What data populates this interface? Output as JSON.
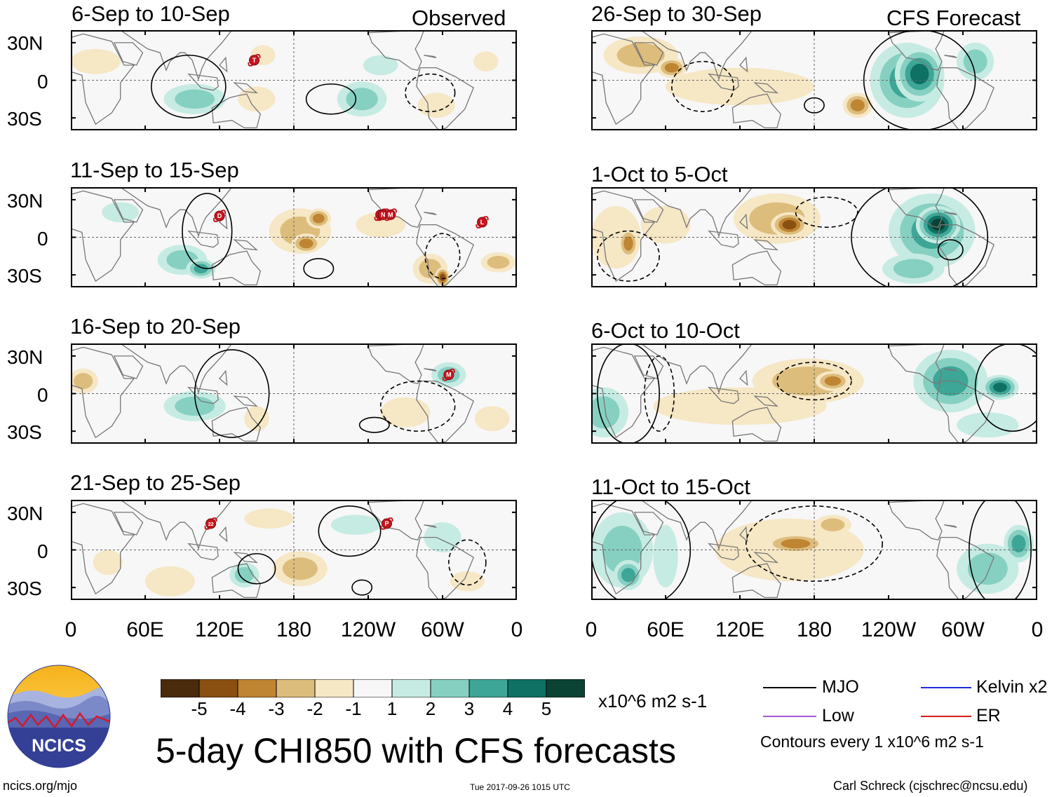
{
  "observed_label": "Observed",
  "forecast_label": "CFS Forecast",
  "lat_labels": [
    "30N",
    "0",
    "30S"
  ],
  "lon_labels": [
    "0",
    "60E",
    "120E",
    "180",
    "120W",
    "60W",
    "0"
  ],
  "panels": [
    {
      "title": "6-Sep to 10-Sep",
      "storms": [
        {
          "label": "T",
          "lon": 148,
          "lat": 16
        }
      ]
    },
    {
      "title": "11-Sep to 15-Sep",
      "storms": [
        {
          "label": "D",
          "lon": 120,
          "lat": 17
        },
        {
          "label": "O",
          "lon": 250,
          "lat": 18
        },
        {
          "label": "N",
          "lon": 252,
          "lat": 18
        },
        {
          "label": "M",
          "lon": 258,
          "lat": 18
        },
        {
          "label": "L",
          "lon": 332,
          "lat": 12
        }
      ]
    },
    {
      "title": "16-Sep to 20-Sep",
      "storms": [
        {
          "label": "M",
          "lon": 305,
          "lat": 15
        }
      ]
    },
    {
      "title": "21-Sep to 25-Sep",
      "storms": [
        {
          "label": "22",
          "lon": 113,
          "lat": 21
        },
        {
          "label": "P",
          "lon": 255,
          "lat": 21
        }
      ]
    },
    {
      "title": "26-Sep to 30-Sep",
      "storms": []
    },
    {
      "title": "1-Oct to 5-Oct",
      "storms": []
    },
    {
      "title": "6-Oct to 10-Oct",
      "storms": []
    },
    {
      "title": "11-Oct to 15-Oct",
      "storms": []
    }
  ],
  "colorbar": {
    "colors": [
      "#4a2c0c",
      "#8a5012",
      "#bf8532",
      "#ddbd7c",
      "#f6e7c5",
      "#f7f7f7",
      "#c6ebe3",
      "#86d0c2",
      "#3ea697",
      "#0f7064",
      "#0a4233"
    ],
    "ticks": [
      "-5",
      "-4",
      "-3",
      "-2",
      "-1",
      "1",
      "2",
      "3",
      "4",
      "5"
    ],
    "units": "x10^6 m2 s-1"
  },
  "main_title": "5-day CHI850 with CFS forecasts",
  "legend": {
    "items": [
      {
        "label": "MJO",
        "color": "#000000"
      },
      {
        "label": "Kelvin x2",
        "color": "#1e2dd6"
      },
      {
        "label": "Low",
        "color": "#a05ad8"
      },
      {
        "label": "ER",
        "color": "#d61a1a"
      }
    ],
    "contour_note": "Contours every 1 x10^6 m2 s-1"
  },
  "logo_text": "NCICS",
  "footer": {
    "url": "ncics.org/mjo",
    "timestamp": "Tue 2017-09-26 1015 UTC",
    "credit": "Carl Schreck (cjschrec@ncsu.edu)"
  }
}
